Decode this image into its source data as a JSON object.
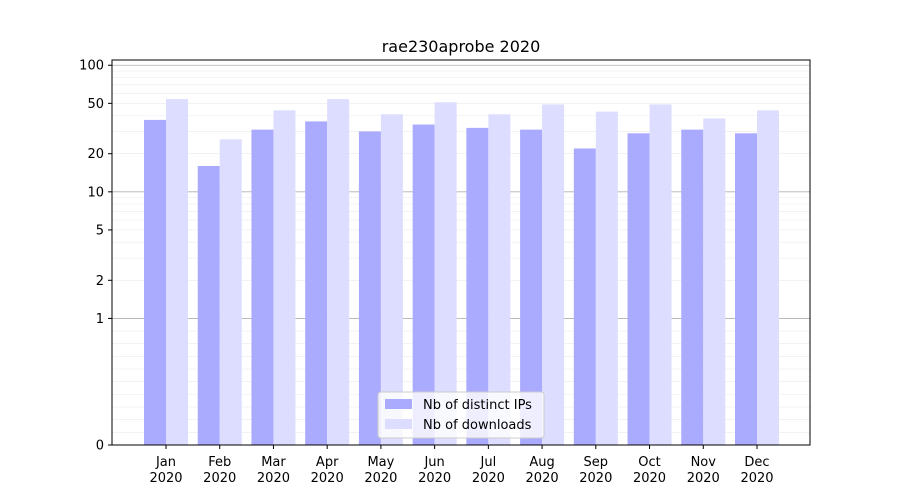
{
  "chart_data": {
    "type": "bar",
    "title": "rae230aprobe 2020",
    "xlabel": "",
    "ylabel": "",
    "yscale": "symlog",
    "ylim": [
      0,
      110
    ],
    "yticks": [
      0,
      1,
      2,
      5,
      10,
      20,
      50,
      100
    ],
    "ytick_labels": [
      "0",
      "1",
      "2",
      "5",
      "10",
      "20",
      "50",
      "100"
    ],
    "grid": "horizontal",
    "legend_position": "bottom-center",
    "categories": [
      {
        "month": "Jan",
        "year": "2020"
      },
      {
        "month": "Feb",
        "year": "2020"
      },
      {
        "month": "Mar",
        "year": "2020"
      },
      {
        "month": "Apr",
        "year": "2020"
      },
      {
        "month": "May",
        "year": "2020"
      },
      {
        "month": "Jun",
        "year": "2020"
      },
      {
        "month": "Jul",
        "year": "2020"
      },
      {
        "month": "Aug",
        "year": "2020"
      },
      {
        "month": "Sep",
        "year": "2020"
      },
      {
        "month": "Oct",
        "year": "2020"
      },
      {
        "month": "Nov",
        "year": "2020"
      },
      {
        "month": "Dec",
        "year": "2020"
      }
    ],
    "series": [
      {
        "name": "Nb of distinct IPs",
        "color": "#aaaaff",
        "values": [
          37,
          16,
          31,
          36,
          30,
          34,
          32,
          31,
          22,
          29,
          31,
          29
        ]
      },
      {
        "name": "Nb of downloads",
        "color": "#ddddff",
        "values": [
          54,
          26,
          44,
          54,
          41,
          51,
          41,
          49,
          43,
          49,
          38,
          44
        ]
      }
    ]
  }
}
